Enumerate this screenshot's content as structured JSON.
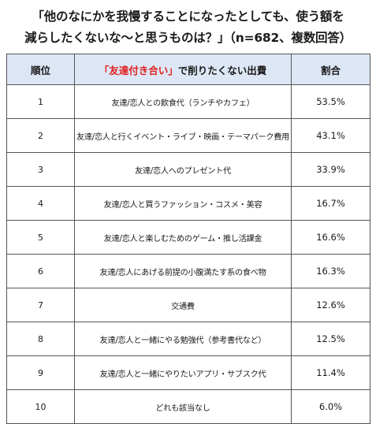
{
  "title": {
    "line1": "「他のなにかを我慢することになったとしても、使う額を",
    "line2": "減らしたくないな〜と思うものは？」（n=682、複数回答）"
  },
  "table": {
    "headers": {
      "rank": "順位",
      "item_highlight": "「友達付き合い」",
      "item_rest": "で削りたくない出費",
      "share": "割合"
    },
    "accent_color": "#e02020",
    "header_bg": "#dde6f4"
  },
  "chart_data": {
    "type": "table",
    "columns": [
      "順位",
      "「友達付き合い」で削りたくない出費",
      "割合"
    ],
    "rows": [
      {
        "rank": "1",
        "item": "友達/恋人との飲食代（ランチやカフェ）",
        "share": "53.5%",
        "value": 53.5
      },
      {
        "rank": "2",
        "item": "友達/恋人と行くイベント・ライブ・映画・テーマパーク費用",
        "share": "43.1%",
        "value": 43.1
      },
      {
        "rank": "3",
        "item": "友達/恋人へのプレゼント代",
        "share": "33.9%",
        "value": 33.9
      },
      {
        "rank": "4",
        "item": "友達/恋人と買うファッション・コスメ・美容",
        "share": "16.7%",
        "value": 16.7
      },
      {
        "rank": "5",
        "item": "友達/恋人と楽しむためのゲーム・推し活課金",
        "share": "16.6%",
        "value": 16.6
      },
      {
        "rank": "6",
        "item": "友達/恋人にあげる前提の小腹満たす系の食べ物",
        "share": "16.3%",
        "value": 16.3
      },
      {
        "rank": "7",
        "item": "交通費",
        "share": "12.6%",
        "value": 12.6
      },
      {
        "rank": "8",
        "item": "友達/恋人と一緒にやる勉強代（参考書代など）",
        "share": "12.5%",
        "value": 12.5
      },
      {
        "rank": "9",
        "item": "友達/恋人と一緒にやりたいアプリ・サブスク代",
        "share": "11.4%",
        "value": 11.4
      },
      {
        "rank": "10",
        "item": "どれも該当なし",
        "share": "6.0%",
        "value": 6.0
      }
    ]
  }
}
